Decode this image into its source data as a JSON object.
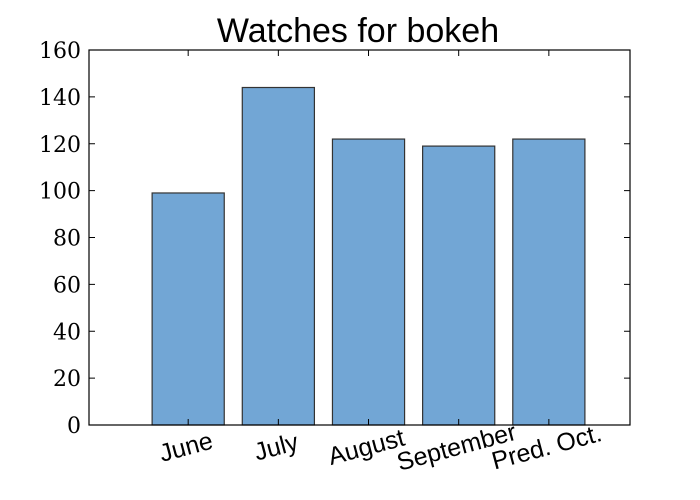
{
  "chart_data": {
    "type": "bar",
    "title": "Watches for bokeh",
    "xlabel": "",
    "ylabel": "",
    "categories": [
      "June",
      "July",
      "August",
      "September",
      "Pred. Oct."
    ],
    "values": [
      99,
      144,
      122,
      119,
      122
    ],
    "ylim": [
      0,
      160
    ],
    "yticks": [
      0,
      20,
      40,
      60,
      80,
      100,
      120,
      140,
      160
    ],
    "grid": false,
    "legend": "none",
    "bar_color": "#72a6d5",
    "bar_edge_color": "#333333",
    "axis_color": "#000000"
  }
}
